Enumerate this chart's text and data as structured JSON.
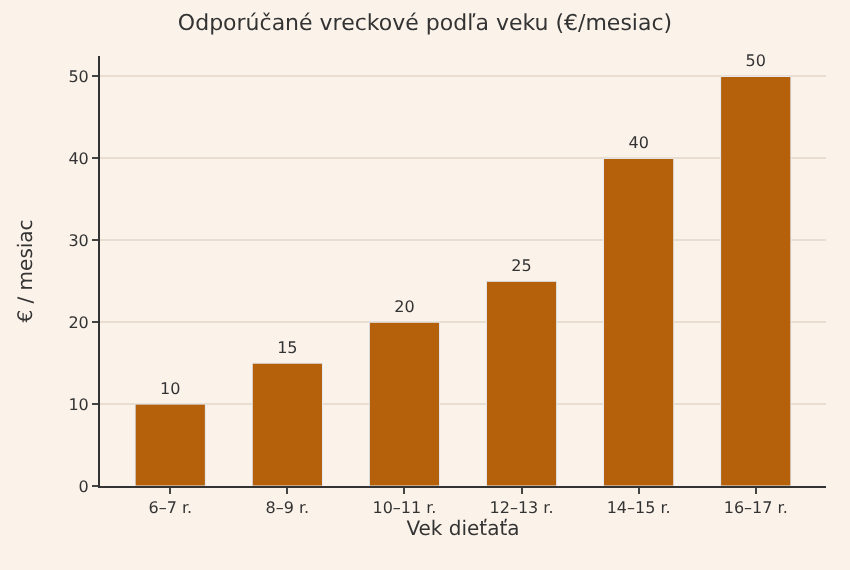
{
  "chart_data": {
    "type": "bar",
    "title": "Odporúčané vreckové podľa veku (€/mesiac)",
    "xlabel": "Vek dieťaťa",
    "ylabel": "€ / mesiac",
    "categories": [
      "6–7 r.",
      "8–9 r.",
      "10–11 r.",
      "12–13 r.",
      "14–15 r.",
      "16–17 r."
    ],
    "values": [
      10,
      15,
      20,
      25,
      40,
      50
    ],
    "color": "#b5600a",
    "ylim": [
      0,
      52.5
    ],
    "yticks": [
      0,
      10,
      20,
      30,
      40,
      50
    ],
    "grid": "y",
    "data_labels": true
  }
}
